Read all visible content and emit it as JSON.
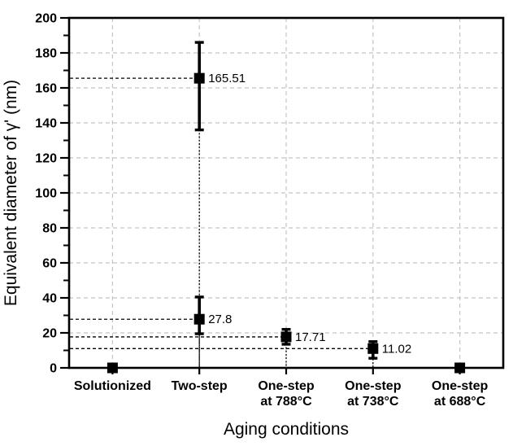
{
  "colors": {
    "background": "#ffffff",
    "axis": "#000000",
    "text": "#000000",
    "grid": "#c4c4c4",
    "dropline": "#000000",
    "marker": "#000000"
  },
  "chart_data": {
    "type": "scatter",
    "title": "",
    "xlabel": "Aging conditions",
    "ylabel": "Equivalent diameter of γ' (nm)",
    "ylim": [
      0,
      200
    ],
    "y_major_tick_step": 20,
    "y_minor_tick_step": 10,
    "y_tick_labels": [
      "0",
      "20",
      "40",
      "60",
      "80",
      "100",
      "120",
      "140",
      "160",
      "180",
      "200"
    ],
    "grid": {
      "horizontal": true,
      "vertical": true,
      "line_style": "dashed"
    },
    "legend": null,
    "categories": [
      {
        "label_lines": [
          "Solutionized"
        ]
      },
      {
        "label_lines": [
          "Two-step"
        ]
      },
      {
        "label_lines": [
          "One-step",
          "at 788°C"
        ]
      },
      {
        "label_lines": [
          "One-step",
          "at 738°C"
        ]
      },
      {
        "label_lines": [
          "One-step",
          "at 688°C"
        ]
      }
    ],
    "series": [
      {
        "name": "Equivalent diameter of γ'",
        "marker": "filled-square",
        "points": [
          {
            "cat_index": 0,
            "value": 0,
            "err_upper": 0,
            "err_lower": 0,
            "label": null,
            "droplines": false
          },
          {
            "cat_index": 1,
            "value": 165.51,
            "err_upper": 186,
            "err_lower": 136,
            "label": "165.51",
            "droplines": true
          },
          {
            "cat_index": 1,
            "value": 27.8,
            "err_upper": 40.5,
            "err_lower": 19.5,
            "label": "27.8",
            "droplines": true
          },
          {
            "cat_index": 2,
            "value": 17.71,
            "err_upper": 22,
            "err_lower": 13.5,
            "label": "17.71",
            "droplines": true
          },
          {
            "cat_index": 3,
            "value": 11.02,
            "err_upper": 15,
            "err_lower": 5.5,
            "label": "11.02",
            "droplines": true
          },
          {
            "cat_index": 4,
            "value": 0,
            "err_upper": 0,
            "err_lower": 0,
            "label": null,
            "droplines": false
          }
        ]
      }
    ]
  }
}
